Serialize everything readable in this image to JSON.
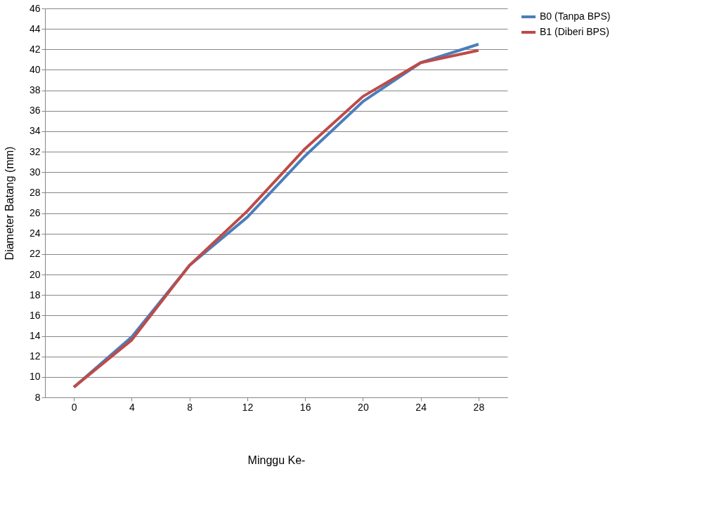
{
  "chart_data": {
    "type": "line",
    "xlabel": "Minggu Ke-",
    "ylabel": "Diameter Batang (mm)",
    "categories": [
      "0",
      "4",
      "8",
      "12",
      "16",
      "20",
      "24",
      "28"
    ],
    "series": [
      {
        "name": "B0 (Tanpa BPS)",
        "color": "#4a7ebb",
        "values": [
          9.0,
          13.9,
          20.9,
          25.6,
          31.6,
          36.9,
          40.7,
          42.5
        ]
      },
      {
        "name": "B1 (Diberi BPS)",
        "color": "#be4b48",
        "values": [
          9.0,
          13.6,
          20.9,
          26.2,
          32.3,
          37.4,
          40.7,
          41.9
        ]
      }
    ],
    "ylim": [
      8,
      46
    ],
    "yticks": [
      8,
      10,
      12,
      14,
      16,
      18,
      20,
      22,
      24,
      26,
      28,
      30,
      32,
      34,
      36,
      38,
      40,
      42,
      44,
      46
    ],
    "grid": "y",
    "legend": "right",
    "marker": "none",
    "line_style": "solid"
  }
}
